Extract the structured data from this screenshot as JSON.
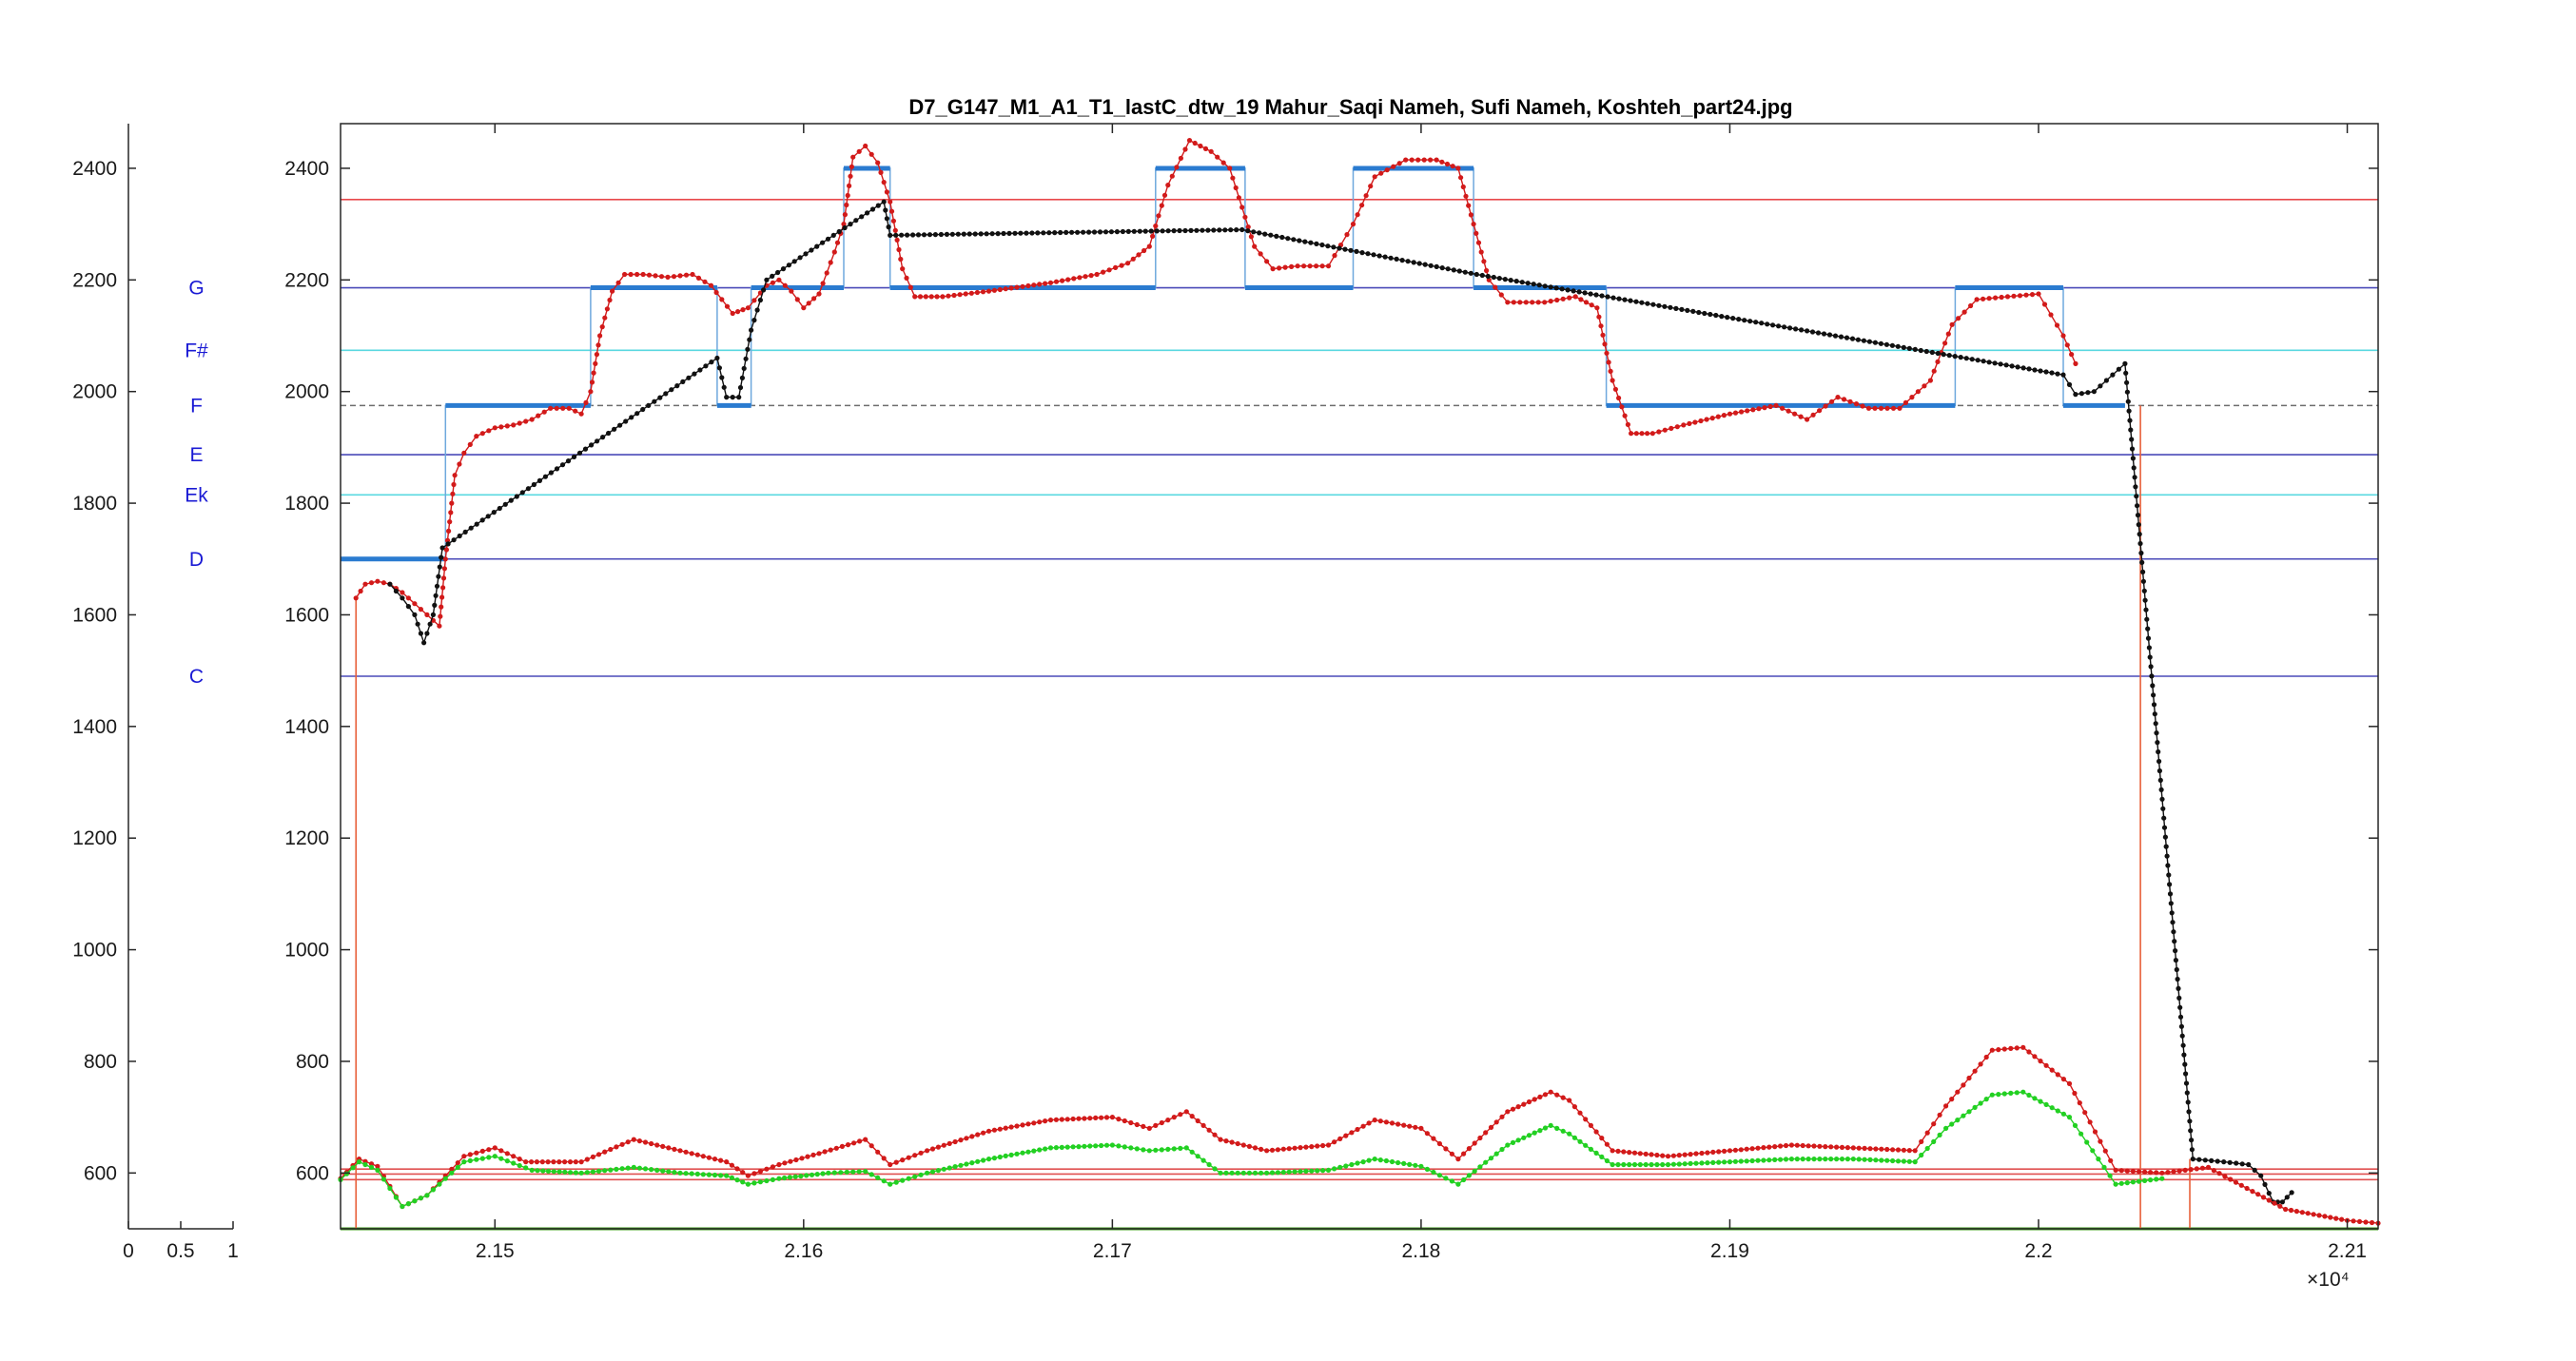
{
  "chart_data": [
    {
      "type": "line",
      "title": "D7_G147_M1_A1_T1_lastC_dtw_19 Mahur_Saqi Nameh, Sufi Nameh, Koshteh_part24.jpg",
      "xlim": [
        21450,
        22110
      ],
      "ylim": [
        500,
        2480
      ],
      "x_ticks": [
        21500,
        21600,
        21700,
        21800,
        21900,
        22000,
        22100
      ],
      "x_tick_labels": [
        "2.15",
        "2.16",
        "2.17",
        "2.18",
        "2.19",
        "2.2",
        "2.21"
      ],
      "x_exponent_label": "×10⁴",
      "y_ticks": [
        600,
        800,
        1000,
        1200,
        1400,
        1600,
        1800,
        2000,
        2200,
        2400
      ],
      "y_tick_labels": [
        "600",
        "800",
        "1000",
        "1200",
        "1400",
        "1600",
        "1800",
        "2000",
        "2200",
        "2400"
      ],
      "grid": false,
      "reference_lines": [
        {
          "y": 2344,
          "color": "#e8484a"
        },
        {
          "y": 2186,
          "color": "#4a4ab8"
        },
        {
          "y": 2074,
          "color": "#5ad8e0"
        },
        {
          "y": 1975,
          "color": "#6d6d6d",
          "dash": true
        },
        {
          "y": 1887,
          "color": "#4a4ab8"
        },
        {
          "y": 1815,
          "color": "#5ad8e0"
        },
        {
          "y": 1700,
          "color": "#4a4ab8"
        },
        {
          "y": 1490,
          "color": "#4a4ab8"
        },
        {
          "y": 607,
          "color": "#e05050"
        },
        {
          "y": 598,
          "color": "#e05050"
        },
        {
          "y": 588,
          "color": "#e05050"
        },
        {
          "y": 500,
          "color": "#3c9a1a"
        }
      ],
      "vertical_lines": [
        {
          "x": 21455,
          "y0": 500,
          "y1": 1630,
          "color": "#e8603a"
        },
        {
          "x": 22033,
          "y0": 500,
          "y1": 1975,
          "color": "#e8603a"
        },
        {
          "x": 22049,
          "y0": 500,
          "y1": 625,
          "color": "#e8603a"
        }
      ],
      "series": [
        {
          "color": "#2a7bd0",
          "style": "step",
          "points": [
            [
              21450,
              1700
            ],
            [
              21484,
              1700
            ],
            [
              21484,
              1975
            ],
            [
              21531,
              1975
            ],
            [
              21531,
              2186
            ],
            [
              21572,
              2186
            ],
            [
              21572,
              1975
            ],
            [
              21583,
              1975
            ],
            [
              21583,
              2186
            ],
            [
              21613,
              2186
            ],
            [
              21613,
              2400
            ],
            [
              21628,
              2400
            ],
            [
              21628,
              2186
            ],
            [
              21714,
              2186
            ],
            [
              21714,
              2400
            ],
            [
              21743,
              2400
            ],
            [
              21743,
              2186
            ],
            [
              21778,
              2186
            ],
            [
              21778,
              2400
            ],
            [
              21817,
              2400
            ],
            [
              21817,
              2186
            ],
            [
              21860,
              2186
            ],
            [
              21860,
              1975
            ],
            [
              21973,
              1975
            ],
            [
              21973,
              2186
            ],
            [
              22008,
              2186
            ],
            [
              22008,
              1975
            ],
            [
              22028,
              1975
            ]
          ]
        },
        {
          "color": "#d21a1a",
          "style": "dots",
          "points": [
            [
              21455,
              1630
            ],
            [
              21458,
              1655
            ],
            [
              21462,
              1660
            ],
            [
              21466,
              1655
            ],
            [
              21470,
              1640
            ],
            [
              21474,
              1620
            ],
            [
              21478,
              1600
            ],
            [
              21482,
              1580
            ],
            [
              21484,
              1700
            ],
            [
              21487,
              1850
            ],
            [
              21490,
              1890
            ],
            [
              21494,
              1920
            ],
            [
              21500,
              1935
            ],
            [
              21506,
              1940
            ],
            [
              21512,
              1950
            ],
            [
              21518,
              1970
            ],
            [
              21524,
              1970
            ],
            [
              21528,
              1960
            ],
            [
              21531,
              2000
            ],
            [
              21534,
              2100
            ],
            [
              21538,
              2180
            ],
            [
              21542,
              2210
            ],
            [
              21548,
              2210
            ],
            [
              21556,
              2205
            ],
            [
              21564,
              2210
            ],
            [
              21570,
              2190
            ],
            [
              21577,
              2140
            ],
            [
              21582,
              2150
            ],
            [
              21588,
              2190
            ],
            [
              21592,
              2200
            ],
            [
              21596,
              2180
            ],
            [
              21600,
              2150
            ],
            [
              21605,
              2175
            ],
            [
              21610,
              2250
            ],
            [
              21613,
              2300
            ],
            [
              21616,
              2420
            ],
            [
              21620,
              2440
            ],
            [
              21624,
              2410
            ],
            [
              21628,
              2340
            ],
            [
              21632,
              2220
            ],
            [
              21636,
              2170
            ],
            [
              21645,
              2170
            ],
            [
              21660,
              2180
            ],
            [
              21680,
              2195
            ],
            [
              21695,
              2210
            ],
            [
              21705,
              2230
            ],
            [
              21712,
              2260
            ],
            [
              21718,
              2370
            ],
            [
              21725,
              2450
            ],
            [
              21732,
              2430
            ],
            [
              21738,
              2400
            ],
            [
              21742,
              2330
            ],
            [
              21746,
              2260
            ],
            [
              21752,
              2220
            ],
            [
              21760,
              2225
            ],
            [
              21770,
              2225
            ],
            [
              21778,
              2300
            ],
            [
              21785,
              2385
            ],
            [
              21795,
              2415
            ],
            [
              21805,
              2415
            ],
            [
              21812,
              2400
            ],
            [
              21817,
              2300
            ],
            [
              21822,
              2200
            ],
            [
              21828,
              2160
            ],
            [
              21840,
              2160
            ],
            [
              21850,
              2170
            ],
            [
              21857,
              2150
            ],
            [
              21862,
              2020
            ],
            [
              21868,
              1925
            ],
            [
              21875,
              1925
            ],
            [
              21885,
              1940
            ],
            [
              21900,
              1960
            ],
            [
              21915,
              1975
            ],
            [
              21925,
              1950
            ],
            [
              21935,
              1990
            ],
            [
              21945,
              1970
            ],
            [
              21955,
              1970
            ],
            [
              21965,
              2020
            ],
            [
              21972,
              2120
            ],
            [
              21980,
              2165
            ],
            [
              21990,
              2170
            ],
            [
              22000,
              2175
            ],
            [
              22008,
              2100
            ],
            [
              22012,
              2050
            ]
          ]
        },
        {
          "color": "#111111",
          "style": "dots",
          "points": [
            [
              21466,
              1655
            ],
            [
              21470,
              1630
            ],
            [
              21474,
              1600
            ],
            [
              21477,
              1550
            ],
            [
              21480,
              1600
            ],
            [
              21483,
              1720
            ],
            [
              21572,
              2060
            ],
            [
              21575,
              1990
            ],
            [
              21579,
              1990
            ],
            [
              21583,
              2110
            ],
            [
              21588,
              2200
            ],
            [
              21626,
              2340
            ],
            [
              21628,
              2280
            ],
            [
              21742,
              2290
            ],
            [
              21818,
              2210
            ],
            [
              22008,
              2030
            ],
            [
              22012,
              1995
            ],
            [
              22018,
              2000
            ],
            [
              22024,
              2030
            ],
            [
              22028,
              2050
            ],
            [
              22050,
              625
            ],
            [
              22060,
              620
            ],
            [
              22068,
              615
            ],
            [
              22072,
              595
            ],
            [
              22076,
              548
            ],
            [
              22079,
              548
            ],
            [
              22082,
              565
            ]
          ]
        },
        {
          "color": "#d21a1a",
          "style": "dots",
          "points": [
            [
              21450,
              590
            ],
            [
              21456,
              625
            ],
            [
              21462,
              612
            ],
            [
              21470,
              540
            ],
            [
              21478,
              560
            ],
            [
              21490,
              630
            ],
            [
              21500,
              645
            ],
            [
              21510,
              620
            ],
            [
              21528,
              620
            ],
            [
              21545,
              660
            ],
            [
              21560,
              640
            ],
            [
              21575,
              620
            ],
            [
              21582,
              595
            ],
            [
              21592,
              615
            ],
            [
              21605,
              635
            ],
            [
              21620,
              660
            ],
            [
              21628,
              615
            ],
            [
              21640,
              640
            ],
            [
              21660,
              675
            ],
            [
              21680,
              695
            ],
            [
              21700,
              700
            ],
            [
              21712,
              680
            ],
            [
              21724,
              710
            ],
            [
              21735,
              660
            ],
            [
              21750,
              640
            ],
            [
              21770,
              650
            ],
            [
              21785,
              695
            ],
            [
              21800,
              680
            ],
            [
              21812,
              625
            ],
            [
              21828,
              710
            ],
            [
              21842,
              745
            ],
            [
              21848,
              730
            ],
            [
              21862,
              640
            ],
            [
              21880,
              630
            ],
            [
              21900,
              640
            ],
            [
              21920,
              650
            ],
            [
              21940,
              645
            ],
            [
              21960,
              640
            ],
            [
              21970,
              720
            ],
            [
              21985,
              820
            ],
            [
              21995,
              825
            ],
            [
              22010,
              760
            ],
            [
              22025,
              605
            ],
            [
              22040,
              600
            ],
            [
              22055,
              610
            ],
            [
              22080,
              535
            ],
            [
              22100,
              515
            ],
            [
              22110,
              510
            ]
          ]
        },
        {
          "color": "#22d022",
          "style": "dots",
          "points": [
            [
              21450,
              588
            ],
            [
              21456,
              620
            ],
            [
              21462,
              605
            ],
            [
              21470,
              540
            ],
            [
              21478,
              560
            ],
            [
              21490,
              620
            ],
            [
              21500,
              630
            ],
            [
              21512,
              605
            ],
            [
              21528,
              600
            ],
            [
              21545,
              610
            ],
            [
              21560,
              600
            ],
            [
              21575,
              595
            ],
            [
              21582,
              580
            ],
            [
              21592,
              590
            ],
            [
              21608,
              600
            ],
            [
              21620,
              603
            ],
            [
              21628,
              580
            ],
            [
              21640,
              600
            ],
            [
              21660,
              625
            ],
            [
              21680,
              645
            ],
            [
              21700,
              650
            ],
            [
              21712,
              640
            ],
            [
              21724,
              645
            ],
            [
              21735,
              600
            ],
            [
              21750,
              600
            ],
            [
              21770,
              605
            ],
            [
              21785,
              625
            ],
            [
              21800,
              612
            ],
            [
              21812,
              580
            ],
            [
              21828,
              650
            ],
            [
              21842,
              685
            ],
            [
              21848,
              670
            ],
            [
              21862,
              615
            ],
            [
              21880,
              615
            ],
            [
              21900,
              620
            ],
            [
              21920,
              625
            ],
            [
              21940,
              625
            ],
            [
              21960,
              620
            ],
            [
              21970,
              680
            ],
            [
              21985,
              740
            ],
            [
              21995,
              745
            ],
            [
              22010,
              700
            ],
            [
              22025,
              580
            ],
            [
              22040,
              590
            ]
          ]
        }
      ],
      "notes": [
        "G",
        "F#",
        "F",
        "E",
        "Ek",
        "D",
        "C"
      ]
    },
    {
      "type": "line",
      "xlim": [
        0,
        1
      ],
      "ylim": [
        500,
        2480
      ],
      "x_ticks": [
        0,
        0.5,
        1
      ],
      "x_tick_labels": [
        "0",
        "0.5",
        "1"
      ],
      "y_ticks": [
        600,
        800,
        1000,
        1200,
        1400,
        1600,
        1800,
        2000,
        2200,
        2400
      ],
      "y_tick_labels": [
        "600",
        "800",
        "1000",
        "1200",
        "1400",
        "1600",
        "1800",
        "2000",
        "2200",
        "2400"
      ],
      "grid": false,
      "series": []
    }
  ],
  "notes_panel": {
    "labels": [
      "G",
      "F#",
      "F",
      "E",
      "Ek",
      "D",
      "C"
    ],
    "pitches": [
      2186,
      2074,
      1975,
      1887,
      1815,
      1700,
      1490
    ],
    "color": "#1a1ad4"
  }
}
